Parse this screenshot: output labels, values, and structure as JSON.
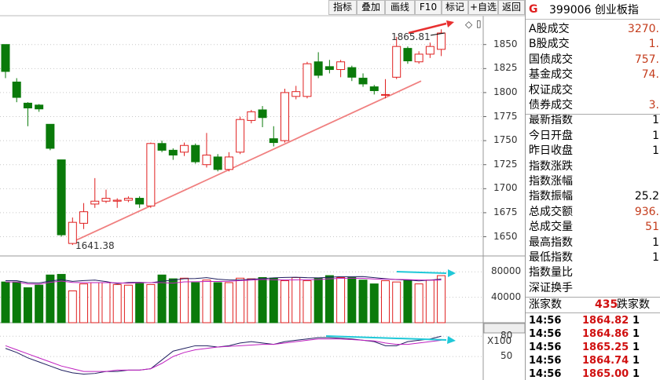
{
  "toolbar": {
    "buttons": [
      "指标",
      "叠加",
      "画线",
      "F10",
      "标记",
      "+自选",
      "返回"
    ]
  },
  "header": {
    "logo": "G",
    "code_name": "399006 创业板指"
  },
  "stats": [
    {
      "label": "A股成交",
      "value": "3270."
    },
    {
      "label": "B股成交",
      "value": "1."
    },
    {
      "label": "国债成交",
      "value": "757."
    },
    {
      "label": "基金成交",
      "value": "74."
    },
    {
      "label": "权证成交",
      "value": ""
    },
    {
      "label": "债券成交",
      "value": "3."
    },
    {
      "label": "最新指数",
      "value": "1"
    },
    {
      "label": "今日开盘",
      "value": "1"
    },
    {
      "label": "昨日收盘",
      "value": "1"
    },
    {
      "label": "指数涨跌",
      "value": ""
    },
    {
      "label": "指数涨幅",
      "value": ""
    },
    {
      "label": "指数振幅",
      "value": "25.2"
    },
    {
      "label": "总成交额",
      "value": "936."
    },
    {
      "label": "总成交量",
      "value": "51"
    },
    {
      "label": "最高指数",
      "value": "1"
    },
    {
      "label": "最低指数",
      "value": "1"
    },
    {
      "label": "指数量比",
      "value": ""
    },
    {
      "label": "深证换手",
      "value": ""
    }
  ],
  "breadth": {
    "up_label": "涨家数",
    "up_value": "435",
    "down_label": "跌家数"
  },
  "ticks": [
    {
      "time": "14:56",
      "price": "1864.82",
      "vol": "1"
    },
    {
      "time": "14:56",
      "price": "1864.86",
      "vol": "1"
    },
    {
      "time": "14:56",
      "price": "1865.25",
      "vol": "1"
    },
    {
      "time": "14:56",
      "price": "1864.74",
      "vol": "1"
    },
    {
      "time": "14:56",
      "price": "1865.00",
      "vol": "1"
    }
  ],
  "colors": {
    "up": "#e02020",
    "down": "#0a7a0a",
    "trend": "#f08080",
    "arrow_red": "#e83030",
    "arrow_cyan": "#20c8d8",
    "ma1": "#202060",
    "ma2": "#c020c0"
  },
  "chart_data": {
    "type": "candlestick",
    "price_axis": {
      "ticks": [
        1650,
        1675,
        1700,
        1725,
        1750,
        1775,
        1800,
        1825,
        1850
      ],
      "ylim": [
        1630,
        1880
      ]
    },
    "annotations": {
      "high": "1865.81",
      "low": "1641.38"
    },
    "candles": [
      {
        "o": 1850,
        "c": 1822,
        "h": 1850,
        "l": 1815
      },
      {
        "o": 1811,
        "c": 1795,
        "h": 1815,
        "l": 1790
      },
      {
        "o": 1789,
        "c": 1784,
        "h": 1790,
        "l": 1765
      },
      {
        "o": 1787,
        "c": 1783,
        "h": 1788,
        "l": 1780
      },
      {
        "o": 1767,
        "c": 1742,
        "h": 1767,
        "l": 1740
      },
      {
        "o": 1730,
        "c": 1652,
        "h": 1730,
        "l": 1650
      },
      {
        "o": 1643,
        "c": 1665,
        "h": 1670,
        "l": 1641.38
      },
      {
        "o": 1664,
        "c": 1676,
        "h": 1685,
        "l": 1658
      },
      {
        "o": 1684,
        "c": 1687,
        "h": 1711,
        "l": 1680
      },
      {
        "o": 1687,
        "c": 1690,
        "h": 1699,
        "l": 1685
      },
      {
        "o": 1687,
        "c": 1688,
        "h": 1690,
        "l": 1680
      },
      {
        "o": 1688,
        "c": 1690,
        "h": 1692,
        "l": 1686
      },
      {
        "o": 1690,
        "c": 1684,
        "h": 1692,
        "l": 1680
      },
      {
        "o": 1682,
        "c": 1747,
        "h": 1748,
        "l": 1680
      },
      {
        "o": 1747,
        "c": 1740,
        "h": 1750,
        "l": 1738
      },
      {
        "o": 1740,
        "c": 1735,
        "h": 1742,
        "l": 1730
      },
      {
        "o": 1738,
        "c": 1745,
        "h": 1748,
        "l": 1734
      },
      {
        "o": 1745,
        "c": 1728,
        "h": 1747,
        "l": 1726
      },
      {
        "o": 1725,
        "c": 1735,
        "h": 1758,
        "l": 1722
      },
      {
        "o": 1733,
        "c": 1720,
        "h": 1736,
        "l": 1718
      },
      {
        "o": 1720,
        "c": 1733,
        "h": 1738,
        "l": 1718
      },
      {
        "o": 1738,
        "c": 1772,
        "h": 1775,
        "l": 1736
      },
      {
        "o": 1771,
        "c": 1780,
        "h": 1782,
        "l": 1768
      },
      {
        "o": 1782,
        "c": 1774,
        "h": 1786,
        "l": 1764
      },
      {
        "o": 1752,
        "c": 1748,
        "h": 1765,
        "l": 1744
      },
      {
        "o": 1750,
        "c": 1800,
        "h": 1804,
        "l": 1748
      },
      {
        "o": 1796,
        "c": 1801,
        "h": 1807,
        "l": 1793
      },
      {
        "o": 1796,
        "c": 1830,
        "h": 1832,
        "l": 1794
      },
      {
        "o": 1832,
        "c": 1818,
        "h": 1842,
        "l": 1815
      },
      {
        "o": 1827,
        "c": 1824,
        "h": 1834,
        "l": 1820
      },
      {
        "o": 1824,
        "c": 1832,
        "h": 1834,
        "l": 1816
      },
      {
        "o": 1826,
        "c": 1816,
        "h": 1828,
        "l": 1812
      },
      {
        "o": 1815,
        "c": 1809,
        "h": 1820,
        "l": 1806
      },
      {
        "o": 1806,
        "c": 1802,
        "h": 1808,
        "l": 1798
      },
      {
        "o": 1798,
        "c": 1798,
        "h": 1814,
        "l": 1794
      },
      {
        "o": 1816,
        "c": 1848,
        "h": 1858,
        "l": 1814
      },
      {
        "o": 1846,
        "c": 1833,
        "h": 1848,
        "l": 1830
      },
      {
        "o": 1832,
        "c": 1840,
        "h": 1843,
        "l": 1830
      },
      {
        "o": 1840,
        "c": 1848,
        "h": 1852,
        "l": 1836
      },
      {
        "o": 1845,
        "c": 1862,
        "h": 1865.81,
        "l": 1838
      }
    ],
    "volume": {
      "ticks": [
        40000,
        80000
      ],
      "multiplier": "X100",
      "values": [
        64,
        64,
        55,
        59,
        75,
        76,
        50,
        61,
        63,
        63,
        60,
        59,
        62,
        60,
        75,
        69,
        70,
        63,
        67,
        63,
        63,
        70,
        69,
        71,
        70,
        66,
        71,
        66,
        70,
        74,
        71,
        71,
        67,
        61,
        66,
        64,
        67,
        61,
        67,
        74
      ],
      "ylim": [
        0,
        100
      ]
    },
    "indicator": {
      "ticks": [
        50,
        80
      ]
    }
  }
}
